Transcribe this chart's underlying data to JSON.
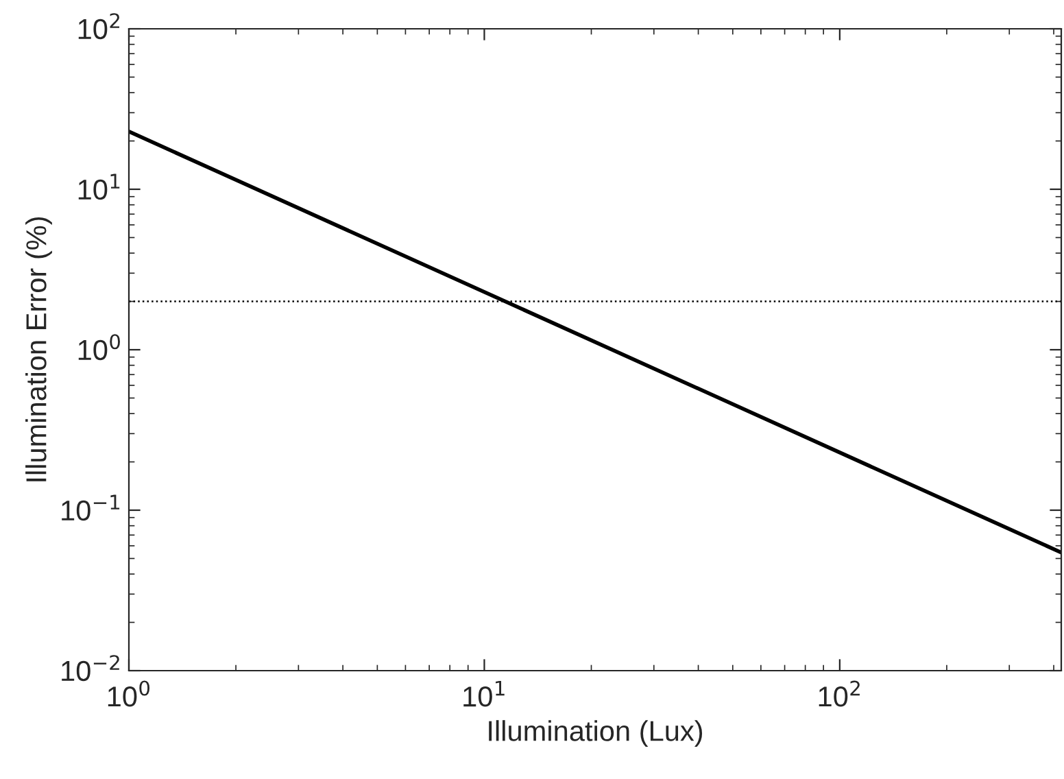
{
  "chart_data": {
    "type": "line",
    "xlabel": "Illumination (Lux)",
    "ylabel": "Illumination Error (%)",
    "x": [
      1,
      420
    ],
    "series": [
      {
        "color": "#000000",
        "values": [
          22.9,
          0.0545
        ]
      }
    ],
    "log": "xy",
    "xlim": [
      1,
      420
    ],
    "ylim": [
      0.01,
      100
    ],
    "xticks": [
      {
        "value": 1,
        "label": "10$^{0}$"
      },
      {
        "value": 10,
        "label": "10$^{1}$"
      },
      {
        "value": 100,
        "label": "10$^{2}$"
      }
    ],
    "yticks": [
      {
        "value": 0.01,
        "label": "10$^{−2}$"
      },
      {
        "value": 0.1,
        "label": "10$^{−1}$"
      },
      {
        "value": 1,
        "label": "10$^{0}$"
      },
      {
        "value": 10,
        "label": "10$^{1}$"
      },
      {
        "value": 100,
        "label": "10$^{2}$"
      }
    ],
    "ref_lines": [
      {
        "axis": "y",
        "value": 2,
        "color": "#000000",
        "line_style": "dotted"
      }
    ],
    "grid": false,
    "legend": false,
    "marker": "none",
    "line_style": "solid"
  }
}
